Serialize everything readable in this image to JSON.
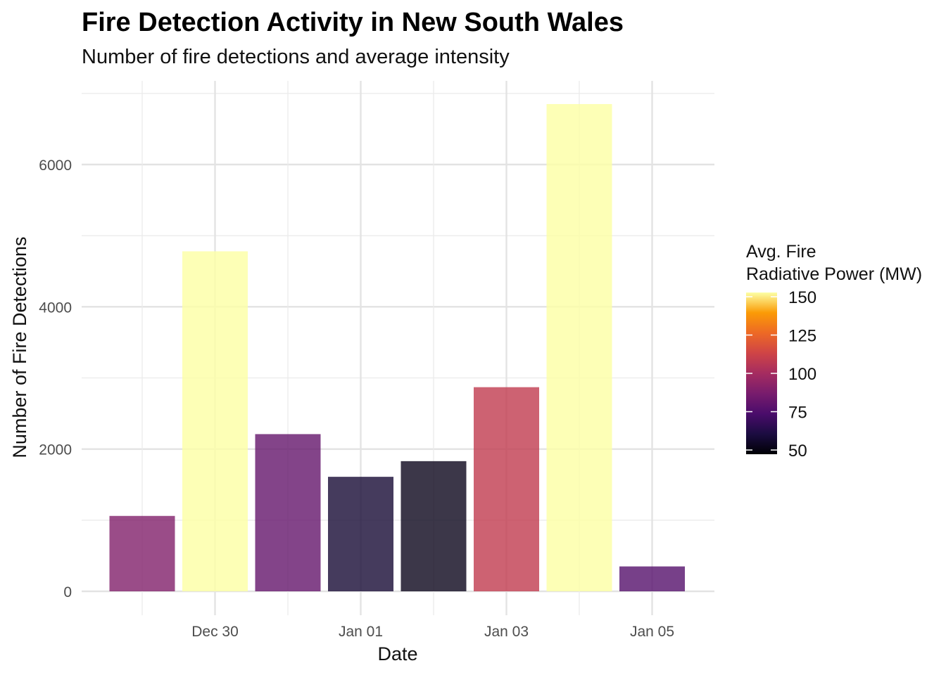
{
  "chart_data": {
    "type": "bar",
    "title": "Fire Detection Activity in New South Wales",
    "subtitle": "Number of fire detections and average intensity",
    "xlabel": "Date",
    "ylabel": "Number of Fire Detections",
    "x_tick_labels": [
      "Dec 30",
      "Jan 01",
      "Jan 03",
      "Jan 05"
    ],
    "y_tick_labels": [
      "0",
      "2000",
      "4000",
      "6000"
    ],
    "ylim": [
      0,
      7000
    ],
    "grid": true,
    "categories": [
      "Dec 29",
      "Dec 30",
      "Dec 31",
      "Jan 01",
      "Jan 02",
      "Jan 03",
      "Jan 04",
      "Jan 05"
    ],
    "values": [
      1060,
      4780,
      2210,
      1610,
      1830,
      2870,
      6850,
      350
    ],
    "fill_values": [
      90,
      155,
      82,
      60,
      55,
      108,
      155,
      78
    ],
    "legend": {
      "title_line1": "Avg. Fire",
      "title_line2": "Radiative Power (MW)",
      "position": "right",
      "labels": [
        "150",
        "125",
        "100",
        "75",
        "50"
      ],
      "range": [
        50,
        150
      ],
      "palette": "inferno"
    }
  }
}
